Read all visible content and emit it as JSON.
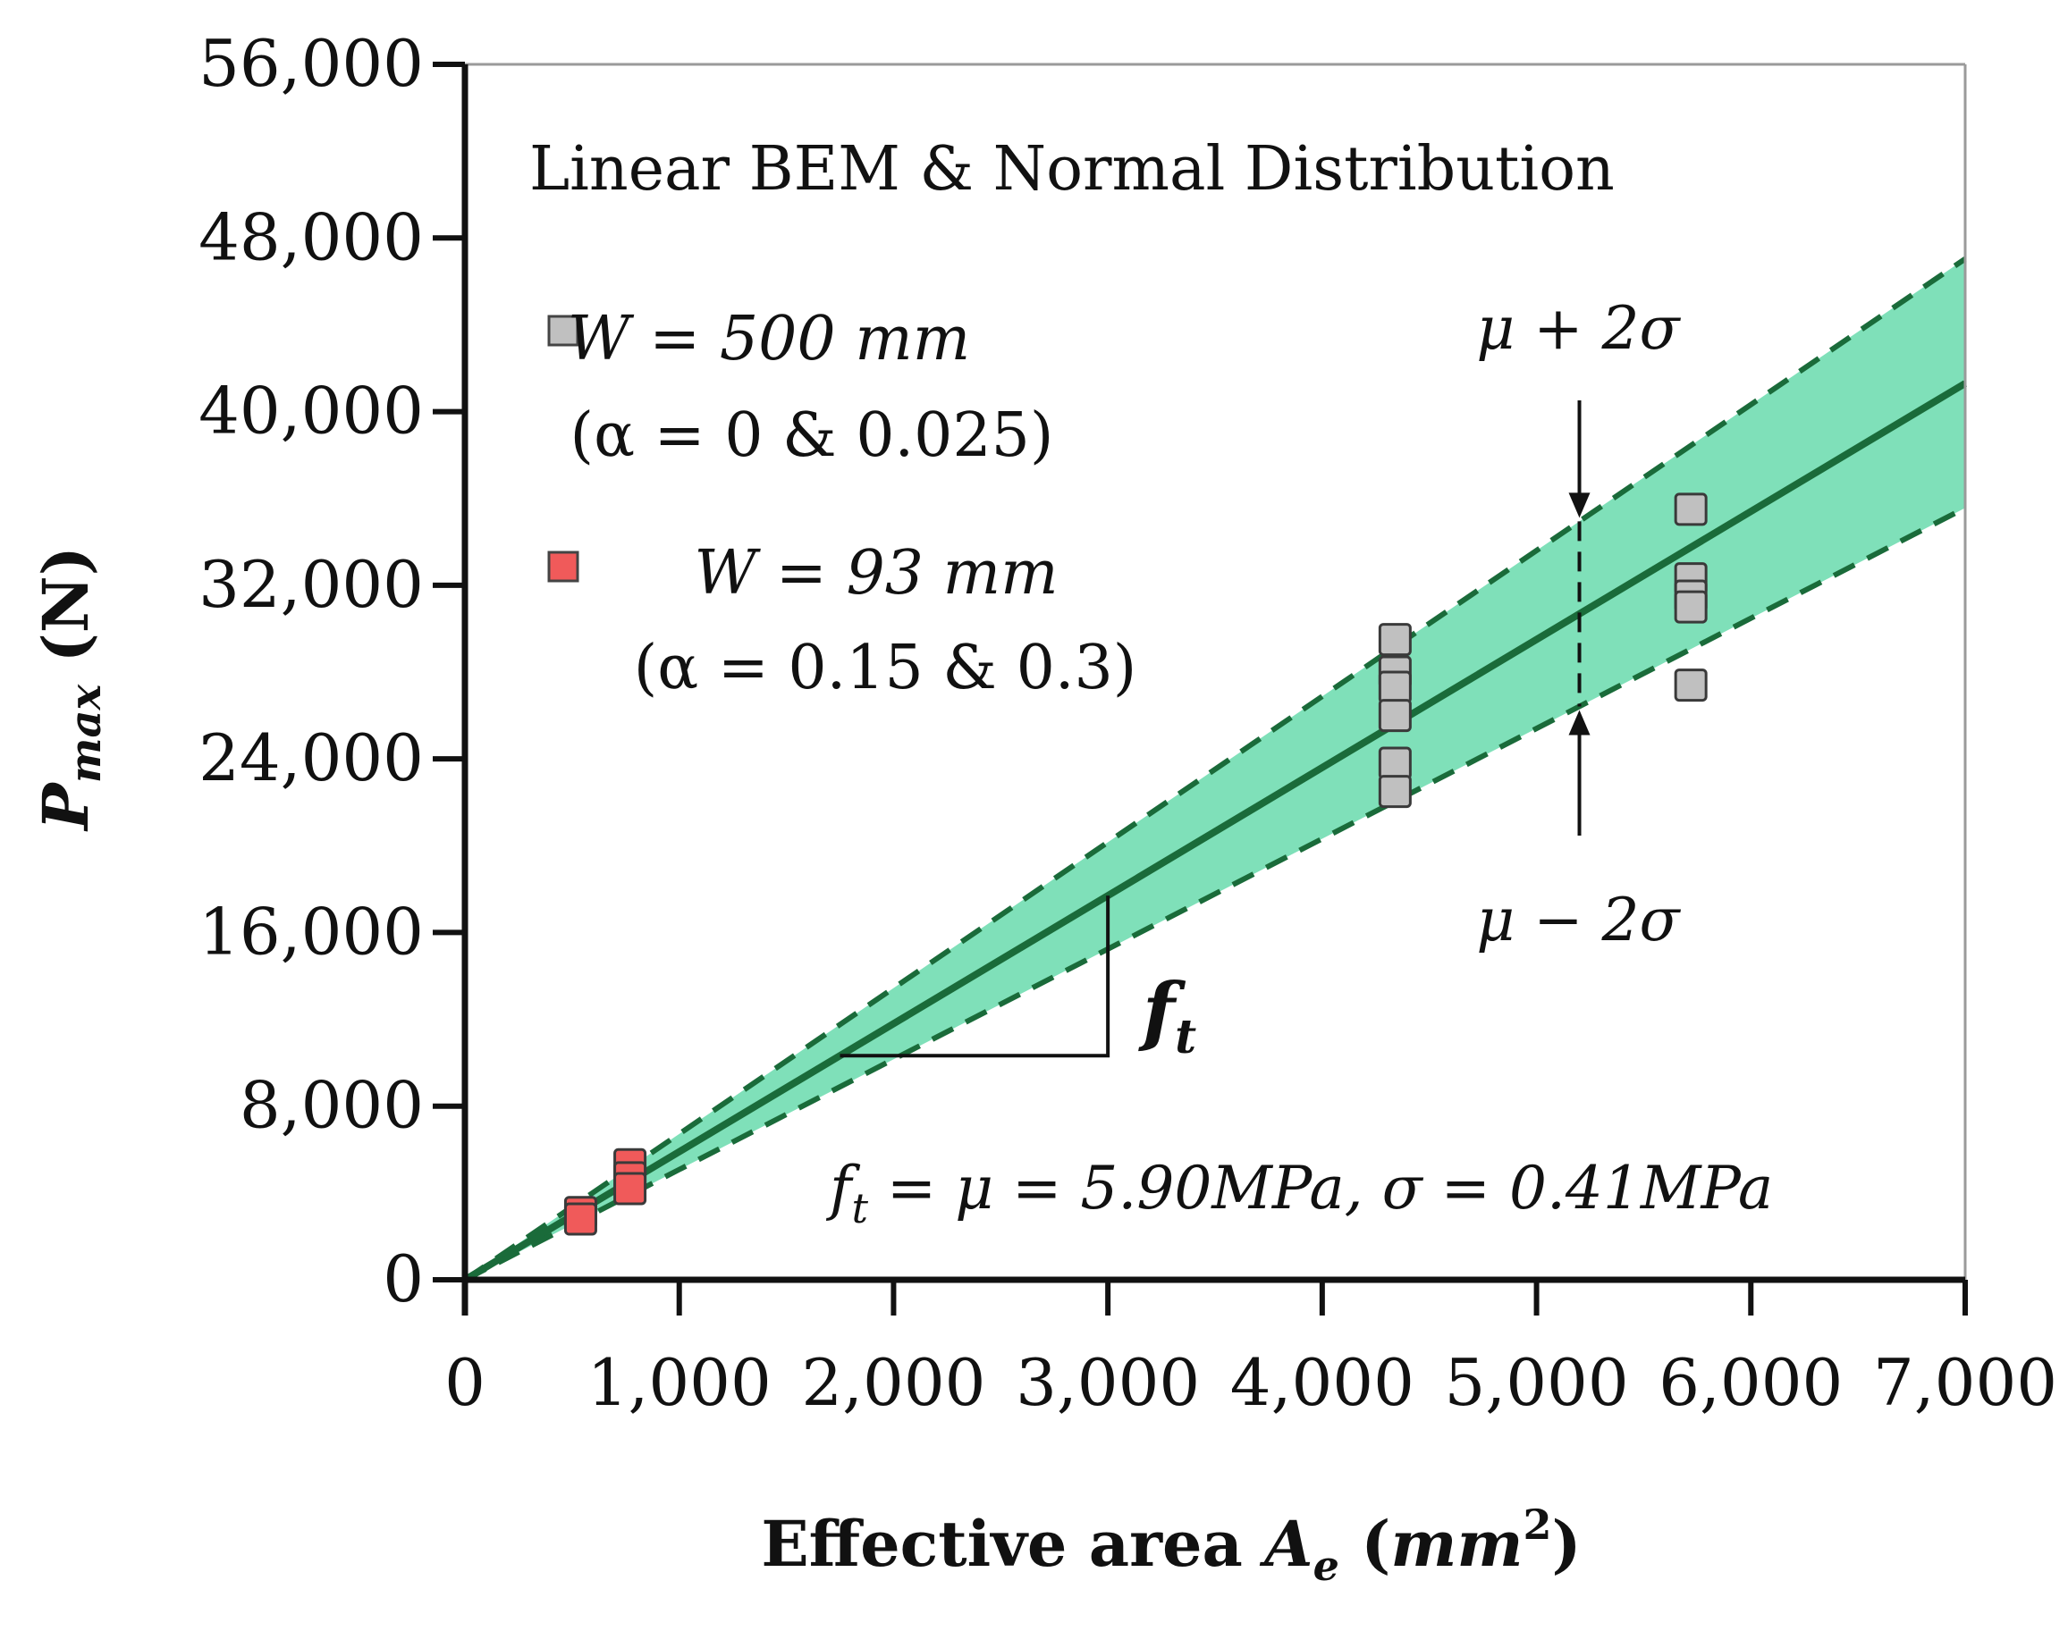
{
  "chart_data": {
    "type": "scatter",
    "title": "Linear BEM & Normal Distribution",
    "xlabel": {
      "main": "Effective area",
      "var": "A",
      "var_sub": "e",
      "unit": "mm",
      "unit_sup": "2"
    },
    "ylabel": {
      "var": "P",
      "sub": "max",
      "unit": "(N)"
    },
    "xlim": [
      0,
      7000
    ],
    "ylim": [
      0,
      56000
    ],
    "x_ticks": [
      0,
      1000,
      2000,
      3000,
      4000,
      5000,
      6000,
      7000
    ],
    "y_ticks": [
      0,
      8000,
      16000,
      24000,
      32000,
      40000,
      48000,
      56000
    ],
    "x_tick_labels": [
      "0",
      "1,000",
      "2,000",
      "3,000",
      "4,000",
      "5,000",
      "6,000",
      "7,000"
    ],
    "y_tick_labels": [
      "0",
      "8,000",
      "16,000",
      "24,000",
      "32,000",
      "40,000",
      "48,000",
      "56,000"
    ],
    "fit": {
      "mu_slope": 5.9,
      "sigma": 0.41,
      "upper_slope": 6.72,
      "lower_slope": 5.08,
      "band_color": "#7fe0b9",
      "line_color": "#1a6b3a"
    },
    "series": [
      {
        "name": "W = 500 mm (α = 0 & 0.025)",
        "color": "#c0c0c0",
        "points": [
          {
            "x": 4340,
            "y": 29500
          },
          {
            "x": 4340,
            "y": 28000
          },
          {
            "x": 4340,
            "y": 27300
          },
          {
            "x": 4340,
            "y": 26000
          },
          {
            "x": 4340,
            "y": 23800
          },
          {
            "x": 4340,
            "y": 22500
          },
          {
            "x": 5720,
            "y": 35500
          },
          {
            "x": 5720,
            "y": 32300
          },
          {
            "x": 5720,
            "y": 31500
          },
          {
            "x": 5720,
            "y": 31000
          },
          {
            "x": 5720,
            "y": 27400
          }
        ]
      },
      {
        "name": "W = 93 mm (α = 0.15 & 0.3)",
        "color": "#f05a5a",
        "points": [
          {
            "x": 540,
            "y": 3100
          },
          {
            "x": 540,
            "y": 2800
          },
          {
            "x": 770,
            "y": 5300
          },
          {
            "x": 770,
            "y": 4700
          },
          {
            "x": 770,
            "y": 4200
          }
        ]
      }
    ],
    "legend": [
      {
        "line1": "W = 500 mm",
        "line2": "(α = 0 & 0.025)",
        "color": "#c0c0c0"
      },
      {
        "line1": "W = 93 mm",
        "line2": "(α = 0.15 & 0.3)",
        "color": "#f05a5a"
      }
    ],
    "annotations": {
      "upper": "μ + 2σ",
      "lower": "μ − 2σ",
      "slope_label": "f",
      "slope_label_sub": "t",
      "equation": "f",
      "equation_sub": "t",
      "equation_rest": " = μ = 5.90MPa, σ = 0.41MPa",
      "sigma_marker_x": 5200,
      "slope_triangle": {
        "x1": 1750,
        "x2": 3000
      }
    }
  }
}
